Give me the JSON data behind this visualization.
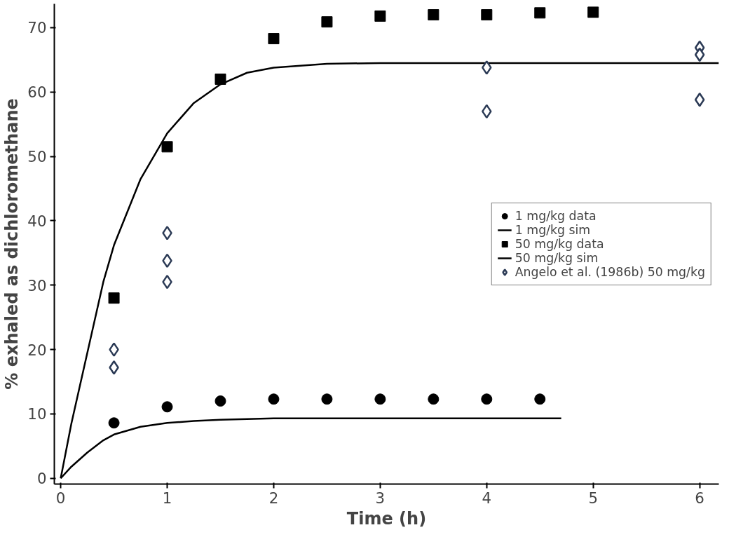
{
  "chart_data": {
    "type": "scatter",
    "xlabel": "Time (h)",
    "ylabel": "% exhaled as dichloromethane",
    "xlim": [
      -0.06,
      6.18
    ],
    "ylim": [
      -0.9,
      73.7
    ],
    "xticks": [
      0,
      1,
      2,
      3,
      4,
      5,
      6
    ],
    "yticks": [
      0,
      10,
      20,
      30,
      40,
      50,
      60,
      70
    ],
    "grid": false,
    "legend": "right",
    "series": [
      {
        "name": "1 mg/kg data",
        "marker": "circle",
        "color": "#000000",
        "x": [
          0.5,
          1,
          1.5,
          2,
          2.5,
          3,
          3.5,
          4,
          4.5
        ],
        "values": [
          8.6,
          11.1,
          12.0,
          12.3,
          12.3,
          12.3,
          12.3,
          12.3,
          12.3
        ]
      },
      {
        "name": "1 mg/kg sim",
        "type": "line",
        "color": "#000000",
        "x": [
          0,
          0.1,
          0.25,
          0.4,
          0.5,
          0.75,
          1,
          1.25,
          1.5,
          2,
          2.5,
          3,
          4,
          4.7
        ],
        "values": [
          0,
          1.8,
          4.0,
          5.9,
          6.8,
          8.0,
          8.6,
          8.9,
          9.1,
          9.3,
          9.3,
          9.3,
          9.3,
          9.3
        ]
      },
      {
        "name": "50 mg/kg data",
        "marker": "square",
        "color": "#000000",
        "x": [
          0.5,
          1,
          1.5,
          2,
          2.5,
          3,
          3.5,
          4,
          4.5,
          5
        ],
        "values": [
          28.0,
          51.5,
          62.0,
          68.3,
          70.9,
          71.8,
          72.0,
          72.0,
          72.3,
          72.4
        ]
      },
      {
        "name": "50 mg/kg sim",
        "type": "line",
        "color": "#000000",
        "x": [
          0,
          0.1,
          0.25,
          0.4,
          0.5,
          0.75,
          1,
          1.25,
          1.5,
          1.75,
          2,
          2.5,
          3,
          4,
          5,
          6.18
        ],
        "values": [
          0,
          8.5,
          19.5,
          30.5,
          36.2,
          46.5,
          53.6,
          58.3,
          61.2,
          63.0,
          63.8,
          64.4,
          64.5,
          64.5,
          64.5,
          64.5
        ]
      },
      {
        "name": "Angelo et al. (1986b) 50 mg/kg",
        "marker": "diamond",
        "color": "#2b3a55",
        "x": [
          0.5,
          0.5,
          1,
          1,
          1,
          4,
          4,
          6,
          6,
          6
        ],
        "values": [
          20.0,
          17.2,
          38.1,
          33.8,
          30.5,
          63.8,
          57.0,
          66.9,
          65.8,
          58.8
        ]
      }
    ]
  }
}
